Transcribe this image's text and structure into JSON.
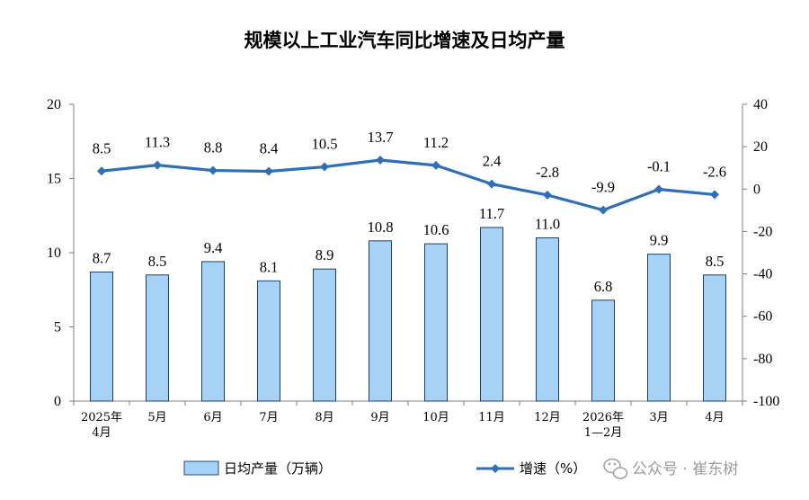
{
  "chart_data": {
    "type": "bar+line",
    "title": "规模以上工业汽车同比增速及日均产量",
    "categories": [
      [
        "2025年",
        "4月"
      ],
      [
        "5月"
      ],
      [
        "6月"
      ],
      [
        "7月"
      ],
      [
        "8月"
      ],
      [
        "9月"
      ],
      [
        "10月"
      ],
      [
        "11月"
      ],
      [
        "12月"
      ],
      [
        "2026年",
        "1—2月"
      ],
      [
        "3月"
      ],
      [
        "4月"
      ]
    ],
    "bar_series": {
      "name": "日均产量（万辆）",
      "color": "#a6d3f5",
      "values": [
        8.7,
        8.5,
        9.4,
        8.1,
        8.9,
        10.8,
        10.6,
        11.7,
        11.0,
        6.8,
        9.9,
        8.5
      ],
      "labels": [
        "8.7",
        "8.5",
        "9.4",
        "8.1",
        "8.9",
        "10.8",
        "10.6",
        "11.7",
        "11.0",
        "6.8",
        "9.9",
        "8.5"
      ]
    },
    "line_series": {
      "name": "增速（%）",
      "color": "#2e6fb8",
      "values": [
        8.5,
        11.3,
        8.8,
        8.4,
        10.5,
        13.7,
        11.2,
        2.4,
        -2.8,
        -9.9,
        -0.1,
        -2.6
      ],
      "labels": [
        "8.5",
        "11.3",
        "8.8",
        "8.4",
        "10.5",
        "13.7",
        "11.2",
        "2.4",
        "-2.8",
        "-9.9",
        "-0.1",
        "-2.6"
      ]
    },
    "left_axis": {
      "ylim": [
        0,
        20
      ],
      "ticks": [
        "0",
        "5",
        "10",
        "15",
        "20"
      ],
      "tick_values": [
        0,
        5,
        10,
        15,
        20
      ]
    },
    "right_axis": {
      "ylim": [
        -100,
        40
      ],
      "ticks": [
        "-100",
        "-80",
        "-60",
        "-40",
        "-20",
        "0",
        "20",
        "40"
      ],
      "tick_values": [
        -100,
        -80,
        -60,
        -40,
        -20,
        0,
        20,
        40
      ]
    },
    "grid": false,
    "legend_position": "bottom"
  },
  "watermark": {
    "text": "公众号 · 崔东树",
    "icon": "wechat-icon"
  }
}
